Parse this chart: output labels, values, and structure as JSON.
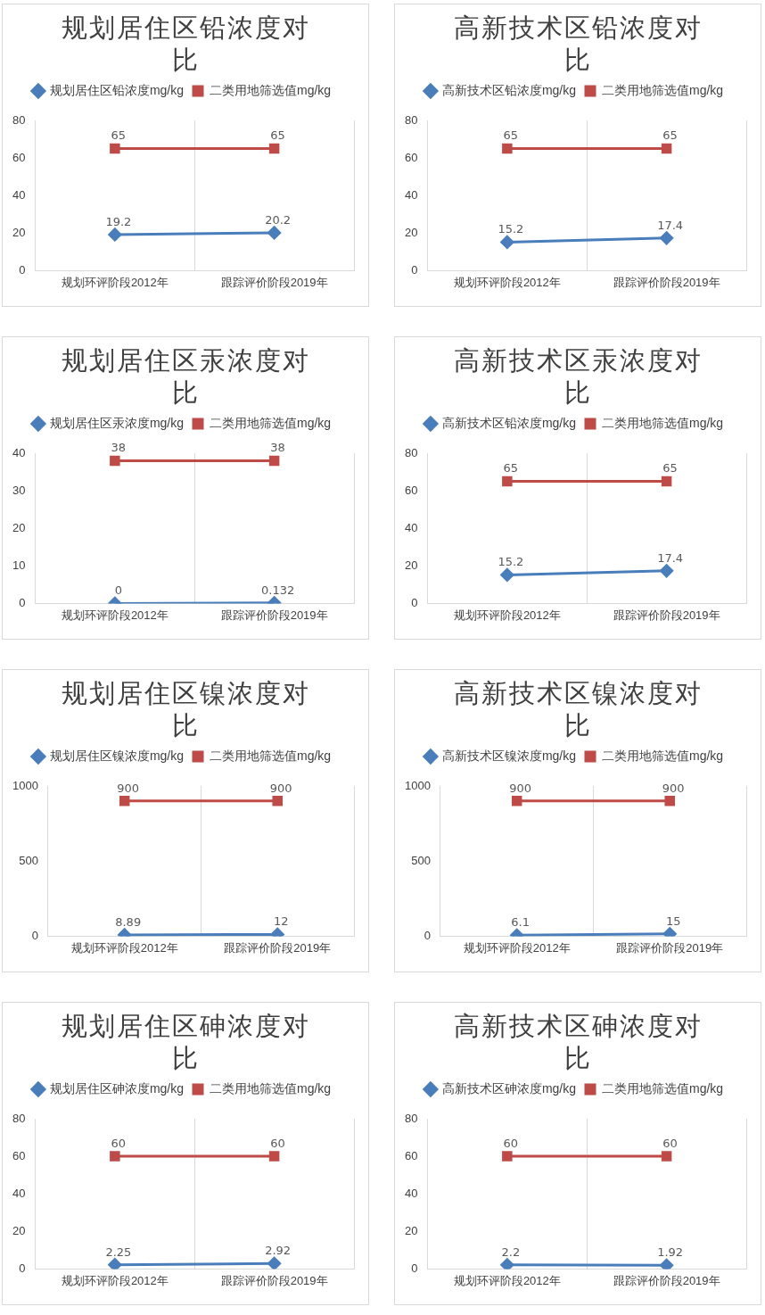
{
  "chart_data": [
    {
      "type": "line",
      "title": "规划居住区铅浓度对比",
      "categories": [
        "规划环评阶段2012年",
        "跟踪评价阶段2019年"
      ],
      "series": [
        {
          "name": "规划居住区铅浓度mg/kg",
          "color": "#4a7ebb",
          "marker": "diamond",
          "values": [
            19.2,
            20.2
          ]
        },
        {
          "name": "二类用地筛选值mg/kg",
          "color": "#be4b48",
          "marker": "square",
          "values": [
            65,
            65
          ]
        }
      ],
      "ylim": [
        0,
        80
      ],
      "yticks": [
        0,
        20,
        40,
        60,
        80
      ],
      "grid": "x",
      "legend": "top",
      "data_labels": true
    },
    {
      "type": "line",
      "title": "高新技术区铅浓度对比",
      "categories": [
        "规划环评阶段2012年",
        "跟踪评价阶段2019年"
      ],
      "series": [
        {
          "name": "高新技术区铅浓度mg/kg",
          "color": "#4a7ebb",
          "marker": "diamond",
          "values": [
            15.2,
            17.4
          ]
        },
        {
          "name": "二类用地筛选值mg/kg",
          "color": "#be4b48",
          "marker": "square",
          "values": [
            65,
            65
          ]
        }
      ],
      "ylim": [
        0,
        80
      ],
      "yticks": [
        0,
        20,
        40,
        60,
        80
      ],
      "grid": "x",
      "legend": "top",
      "data_labels": true
    },
    {
      "type": "line",
      "title": "规划居住区汞浓度对比",
      "categories": [
        "规划环评阶段2012年",
        "跟踪评价阶段2019年"
      ],
      "series": [
        {
          "name": "规划居住区汞浓度mg/kg",
          "color": "#4a7ebb",
          "marker": "diamond",
          "values": [
            0,
            0.132
          ]
        },
        {
          "name": "二类用地筛选值mg/kg",
          "color": "#be4b48",
          "marker": "square",
          "values": [
            38,
            38
          ]
        }
      ],
      "ylim": [
        0,
        40
      ],
      "yticks": [
        0,
        10,
        20,
        30,
        40
      ],
      "grid": "x",
      "legend": "top",
      "data_labels": true
    },
    {
      "type": "line",
      "title": "高新技术区汞浓度对比",
      "categories": [
        "规划环评阶段2012年",
        "跟踪评价阶段2019年"
      ],
      "series": [
        {
          "name": "高新技术区铅浓度mg/kg",
          "color": "#4a7ebb",
          "marker": "diamond",
          "values": [
            15.2,
            17.4
          ]
        },
        {
          "name": "二类用地筛选值mg/kg",
          "color": "#be4b48",
          "marker": "square",
          "values": [
            65,
            65
          ]
        }
      ],
      "ylim": [
        0,
        80
      ],
      "yticks": [
        0,
        20,
        40,
        60,
        80
      ],
      "grid": "x",
      "legend": "top",
      "data_labels": true
    },
    {
      "type": "line",
      "title": "规划居住区镍浓度对比",
      "categories": [
        "规划环评阶段2012年",
        "跟踪评价阶段2019年"
      ],
      "series": [
        {
          "name": "规划居住区镍浓度mg/kg",
          "color": "#4a7ebb",
          "marker": "diamond",
          "values": [
            8.89,
            12
          ]
        },
        {
          "name": "二类用地筛选值mg/kg",
          "color": "#be4b48",
          "marker": "square",
          "values": [
            900,
            900
          ]
        }
      ],
      "ylim": [
        0,
        1000
      ],
      "yticks": [
        0,
        500,
        1000
      ],
      "grid": "x",
      "legend": "top",
      "data_labels": true
    },
    {
      "type": "line",
      "title": "高新技术区镍浓度对比",
      "categories": [
        "规划环评阶段2012年",
        "跟踪评价阶段2019年"
      ],
      "series": [
        {
          "name": "高新技术区镍浓度mg/kg",
          "color": "#4a7ebb",
          "marker": "diamond",
          "values": [
            6.1,
            15
          ]
        },
        {
          "name": "二类用地筛选值mg/kg",
          "color": "#be4b48",
          "marker": "square",
          "values": [
            900,
            900
          ]
        }
      ],
      "ylim": [
        0,
        1000
      ],
      "yticks": [
        0,
        500,
        1000
      ],
      "grid": "x",
      "legend": "top",
      "data_labels": true
    },
    {
      "type": "line",
      "title": "规划居住区砷浓度对比",
      "categories": [
        "规划环评阶段2012年",
        "跟踪评价阶段2019年"
      ],
      "series": [
        {
          "name": "规划居住区砷浓度mg/kg",
          "color": "#4a7ebb",
          "marker": "diamond",
          "values": [
            2.25,
            2.92
          ]
        },
        {
          "name": "二类用地筛选值mg/kg",
          "color": "#be4b48",
          "marker": "square",
          "values": [
            60,
            60
          ]
        }
      ],
      "ylim": [
        0,
        80
      ],
      "yticks": [
        0,
        20,
        40,
        60,
        80
      ],
      "grid": "x",
      "legend": "top",
      "data_labels": true
    },
    {
      "type": "line",
      "title": "高新技术区砷浓度对比",
      "categories": [
        "规划环评阶段2012年",
        "跟踪评价阶段2019年"
      ],
      "series": [
        {
          "name": "高新技术区砷浓度mg/kg",
          "color": "#4a7ebb",
          "marker": "diamond",
          "values": [
            2.2,
            1.92
          ]
        },
        {
          "name": "二类用地筛选值mg/kg",
          "color": "#be4b48",
          "marker": "square",
          "values": [
            60,
            60
          ]
        }
      ],
      "ylim": [
        0,
        80
      ],
      "yticks": [
        0,
        20,
        40,
        60,
        80
      ],
      "grid": "x",
      "legend": "top",
      "data_labels": true
    }
  ]
}
